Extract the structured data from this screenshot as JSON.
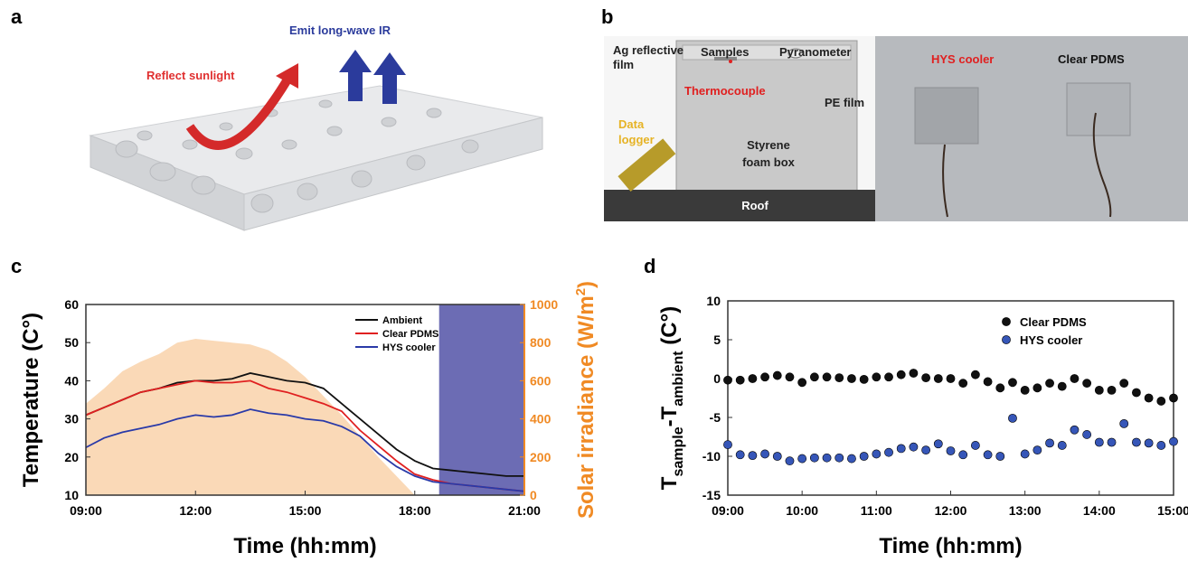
{
  "panels": {
    "a": {
      "letter": "a",
      "emit": "Emit long-wave IR",
      "reflect": "Reflect sunlight"
    },
    "b": {
      "letter": "b",
      "ag": [
        "Ag reflective",
        "film"
      ],
      "samples": "Samples",
      "pyranometer": "Pyranometer",
      "thermocouple": "Thermocouple",
      "pe": "PE film",
      "logger": [
        "Data",
        "logger"
      ],
      "box": [
        "Styrene",
        "foam box"
      ],
      "roof": "Roof",
      "hys": "HYS cooler",
      "pdms": "Clear PDMS"
    },
    "c": {
      "letter": "c"
    },
    "d": {
      "letter": "d"
    }
  },
  "chart_data": [
    {
      "type": "line",
      "xlabel": "Time (hh:mm)",
      "ylabel": "Temperature (C°)",
      "y2label": [
        "Solar irradiance (W/m",
        "2",
        ")"
      ],
      "x": [
        "09:00",
        "09:30",
        "10:00",
        "10:30",
        "11:00",
        "11:30",
        "12:00",
        "12:30",
        "13:00",
        "13:30",
        "14:00",
        "14:30",
        "15:00",
        "15:30",
        "16:00",
        "16:30",
        "17:00",
        "17:30",
        "18:00",
        "18:30",
        "19:00",
        "19:30",
        "20:00",
        "20:30",
        "21:00"
      ],
      "xlim": [
        "09:00",
        "21:00"
      ],
      "xticks": [
        "09:00",
        "12:00",
        "15:00",
        "18:00",
        "21:00"
      ],
      "ylim": [
        10,
        60
      ],
      "yticks": [
        10,
        20,
        30,
        40,
        50,
        60
      ],
      "y2lim": [
        0,
        1000
      ],
      "y2ticks": [
        0,
        200,
        400,
        600,
        800,
        1000
      ],
      "shaded_x": [
        "18:40",
        "21:00"
      ],
      "shade_color": "#6c6cb4",
      "y2_color": "#f08a24",
      "series": [
        {
          "axis": "y2",
          "color": "#f9d2aa",
          "values": [
            480,
            560,
            650,
            700,
            740,
            800,
            820,
            810,
            800,
            790,
            760,
            700,
            620,
            520,
            420,
            310,
            200,
            100,
            0,
            0,
            0,
            0,
            0,
            0,
            0
          ]
        },
        {
          "name": "Ambient",
          "color": "#111111",
          "values": [
            31,
            33,
            35,
            37,
            38,
            39.5,
            40,
            40,
            40.5,
            42,
            41,
            40,
            39.5,
            38,
            34,
            30,
            26,
            22,
            19,
            17,
            16.5,
            16,
            15.5,
            15,
            15
          ]
        },
        {
          "name": "Clear PDMS",
          "color": "#e02020",
          "values": [
            31,
            33,
            35,
            37,
            38,
            39,
            40,
            39.5,
            39.5,
            40,
            38,
            37,
            35.5,
            34,
            32,
            27,
            23,
            19,
            15.5,
            14,
            13,
            12.5,
            12,
            11.5,
            11
          ]
        },
        {
          "name": "HYS cooler",
          "color": "#2a3aa8",
          "values": [
            22.5,
            25,
            26.5,
            27.5,
            28.5,
            30,
            31,
            30.5,
            31,
            32.5,
            31.5,
            31,
            30,
            29.5,
            28,
            25.5,
            21,
            17.5,
            15,
            13.5,
            13,
            12.5,
            12,
            11.5,
            11
          ]
        }
      ]
    },
    {
      "type": "scatter",
      "xlabel": "Time (hh:mm)",
      "ylabel": [
        "T",
        "sample",
        "-T",
        "ambient",
        " (C°)"
      ],
      "x": [
        "09:00",
        "09:10",
        "09:20",
        "09:30",
        "09:40",
        "09:50",
        "10:00",
        "10:10",
        "10:20",
        "10:30",
        "10:40",
        "10:50",
        "11:00",
        "11:10",
        "11:20",
        "11:30",
        "11:40",
        "11:50",
        "12:00",
        "12:10",
        "12:20",
        "12:30",
        "12:40",
        "12:50",
        "13:00",
        "13:10",
        "13:20",
        "13:30",
        "13:40",
        "13:50",
        "14:00",
        "14:10",
        "14:20",
        "14:30",
        "14:40",
        "14:50",
        "15:00"
      ],
      "xlim": [
        "09:00",
        "15:00"
      ],
      "xticks": [
        "09:00",
        "10:00",
        "11:00",
        "12:00",
        "13:00",
        "14:00",
        "15:00"
      ],
      "ylim": [
        -15,
        10
      ],
      "yticks": [
        -15,
        -10,
        -5,
        0,
        5,
        10
      ],
      "series": [
        {
          "name": "Clear PDMS",
          "color": "#111111",
          "values": [
            -0.2,
            -0.2,
            0,
            0.2,
            0.4,
            0.2,
            -0.5,
            0.2,
            0.2,
            0.1,
            0,
            -0.1,
            0.2,
            0.2,
            0.5,
            0.7,
            0.1,
            0,
            0,
            -0.6,
            0.5,
            -0.4,
            -1.2,
            -0.5,
            -1.5,
            -1.2,
            -0.6,
            -1,
            0,
            -0.6,
            -1.5,
            -1.5,
            -0.6,
            -1.8,
            -2.5,
            -2.9,
            -2.5
          ]
        },
        {
          "name": "HYS cooler",
          "color": "#3656b8",
          "values": [
            -8.5,
            -9.8,
            -9.9,
            -9.7,
            -10,
            -10.6,
            -10.3,
            -10.2,
            -10.2,
            -10.2,
            -10.3,
            -10.0,
            -9.7,
            -9.5,
            -9,
            -8.8,
            -9.2,
            -8.4,
            -9.3,
            -9.8,
            -8.6,
            -9.8,
            -10,
            -5.1,
            -9.7,
            -9.2,
            -8.3,
            -8.6,
            -6.6,
            -7.2,
            -8.2,
            -8.2,
            -5.8,
            -8.2,
            -8.3,
            -8.6,
            -8.1
          ]
        }
      ]
    }
  ]
}
